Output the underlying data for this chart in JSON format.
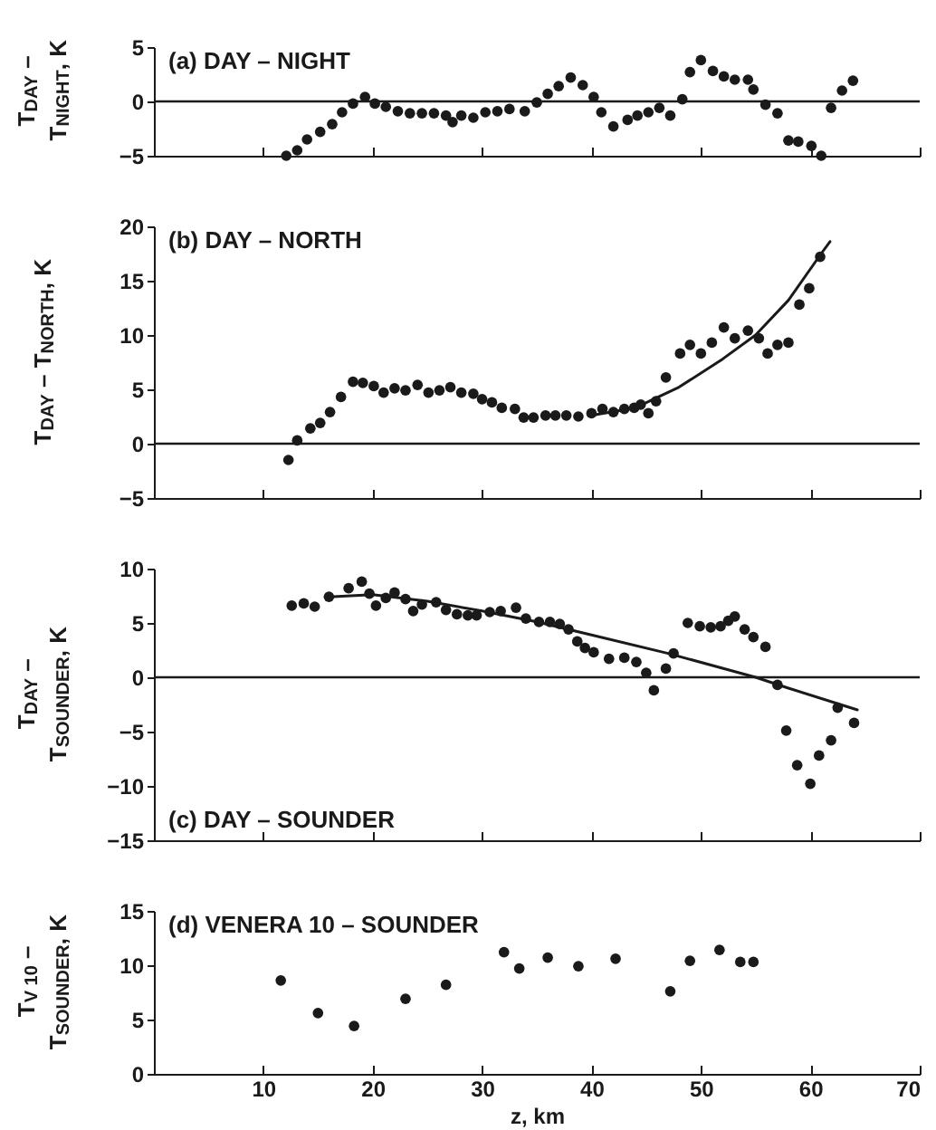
{
  "chart_data": [
    {
      "type": "scatter",
      "title": "(a)  DAY – NIGHT",
      "ylabel": "T$_{DAY}$ –\nT$_{NIGHT}$, K",
      "xlim": [
        0,
        70
      ],
      "xticks": [
        10,
        20,
        30,
        40,
        50,
        60,
        70
      ],
      "ylim": [
        -5,
        5
      ],
      "yticks": [
        -5,
        0,
        5
      ],
      "tick_labels": "y",
      "grid": false,
      "ref_lines": [
        {
          "axis": "y",
          "value": 0
        }
      ],
      "series": [
        {
          "color": "#1a1a1a",
          "marker": "circle",
          "x": [
            12.1,
            13.1,
            14.0,
            15.2,
            16.3,
            17.2,
            18.2,
            19.3,
            20.2,
            21.2,
            22.3,
            23.4,
            24.5,
            25.6,
            26.7,
            27.3,
            28.1,
            29.2,
            30.3,
            31.4,
            32.5,
            33.9,
            35.0,
            36.0,
            37.0,
            38.1,
            39.2,
            40.2,
            40.9,
            42.0,
            43.3,
            44.2,
            45.2,
            46.2,
            47.2,
            48.3,
            49.0,
            50.0,
            51.1,
            52.1,
            53.1,
            54.3,
            54.8,
            55.9,
            57.0,
            58.0,
            58.9,
            60.1,
            61.0,
            61.9,
            62.9,
            63.9
          ],
          "values": [
            -5.0,
            -4.5,
            -3.5,
            -2.8,
            -2.1,
            -1.0,
            -0.2,
            0.4,
            -0.2,
            -0.5,
            -0.9,
            -1.1,
            -1.1,
            -1.1,
            -1.3,
            -1.9,
            -1.3,
            -1.5,
            -1.0,
            -0.9,
            -0.7,
            -0.9,
            -0.1,
            0.7,
            1.4,
            2.2,
            1.5,
            0.4,
            -1.0,
            -2.3,
            -1.7,
            -1.3,
            -1.0,
            -0.6,
            -1.3,
            0.2,
            2.7,
            3.8,
            2.8,
            2.3,
            2.0,
            2.0,
            1.1,
            -0.3,
            -1.1,
            -3.6,
            -3.7,
            -4.1,
            -5.0,
            -0.6,
            1.0,
            1.9
          ]
        }
      ]
    },
    {
      "type": "scatter",
      "title": "(b)  DAY – NORTH",
      "ylabel": "T$_{DAY}$ – T$_{NORTH}$, K",
      "xlim": [
        0,
        70
      ],
      "xticks": [
        10,
        20,
        30,
        40,
        50,
        60,
        70
      ],
      "ylim": [
        -5,
        20
      ],
      "yticks": [
        -5,
        0,
        5,
        10,
        15,
        20
      ],
      "tick_labels": "y",
      "grid": false,
      "ref_lines": [
        {
          "axis": "y",
          "value": 0
        }
      ],
      "series": [
        {
          "color": "#1a1a1a",
          "marker": "circle",
          "x": [
            12.3,
            13.1,
            14.3,
            15.2,
            16.1,
            17.1,
            18.2,
            19.1,
            20.1,
            21.0,
            22.0,
            23.0,
            24.1,
            25.1,
            26.1,
            27.1,
            28.1,
            29.2,
            30.0,
            30.9,
            31.8,
            33.0,
            33.8,
            34.7,
            35.8,
            36.7,
            37.7,
            38.8,
            40.0,
            41.0,
            42.0,
            43.0,
            43.9,
            44.5,
            45.2,
            45.9,
            46.8,
            48.1,
            49.0,
            50.0,
            51.0,
            52.1,
            53.1,
            54.3,
            55.3,
            56.1,
            57.0,
            58.0,
            59.0,
            59.9,
            60.9
          ],
          "values": [
            -1.5,
            0.3,
            1.4,
            1.9,
            2.9,
            4.3,
            5.7,
            5.6,
            5.3,
            4.7,
            5.1,
            4.9,
            5.4,
            4.7,
            4.9,
            5.2,
            4.7,
            4.6,
            4.1,
            3.8,
            3.3,
            3.2,
            2.4,
            2.4,
            2.6,
            2.6,
            2.6,
            2.5,
            2.8,
            3.2,
            2.9,
            3.2,
            3.3,
            3.6,
            2.8,
            3.9,
            6.1,
            8.3,
            9.1,
            8.3,
            9.3,
            10.7,
            9.7,
            10.4,
            9.7,
            8.3,
            9.1,
            9.3,
            12.8,
            14.3,
            17.2
          ]
        },
        {
          "type": "line",
          "color": "#1a1a1a",
          "x": [
            40,
            44,
            48,
            52,
            55,
            58,
            61,
            61.8
          ],
          "values": [
            2.6,
            3.3,
            5.2,
            7.8,
            10.0,
            13.2,
            17.5,
            18.6
          ]
        }
      ]
    },
    {
      "type": "scatter",
      "title": "(c)  DAY – SOUNDER",
      "ylabel": "T$_{DAY}$ –\nT$_{SOUNDER}$, K",
      "xlim": [
        0,
        70
      ],
      "xticks": [
        10,
        20,
        30,
        40,
        50,
        60,
        70
      ],
      "ylim": [
        -15,
        10
      ],
      "yticks": [
        -15,
        -10,
        -5,
        0,
        5,
        10
      ],
      "tick_labels": "y",
      "grid": false,
      "ref_lines": [
        {
          "axis": "y",
          "value": 0
        }
      ],
      "series": [
        {
          "color": "#1a1a1a",
          "marker": "circle",
          "x": [
            12.6,
            13.7,
            14.7,
            16.0,
            17.8,
            19.0,
            19.7,
            20.3,
            21.2,
            22.0,
            23.0,
            23.7,
            24.5,
            25.8,
            26.7,
            27.7,
            28.7,
            29.5,
            30.7,
            31.7,
            33.1,
            34.0,
            35.2,
            36.2,
            37.1,
            37.9,
            38.7,
            39.4,
            40.2,
            41.6,
            43.0,
            44.1,
            45.0,
            45.7,
            46.8,
            47.5,
            48.8,
            49.9,
            50.9,
            51.8,
            52.5,
            53.1,
            54.0,
            54.8,
            55.9,
            57.0,
            57.8,
            58.8,
            60.0,
            60.8,
            61.9,
            62.5,
            64.0
          ],
          "values": [
            6.6,
            6.8,
            6.5,
            7.4,
            8.2,
            8.8,
            7.7,
            6.6,
            7.3,
            7.8,
            7.2,
            6.1,
            6.7,
            6.9,
            6.2,
            5.8,
            5.7,
            5.7,
            6.0,
            6.1,
            6.4,
            5.4,
            5.1,
            5.1,
            4.9,
            4.4,
            3.3,
            2.7,
            2.3,
            1.7,
            1.8,
            1.4,
            0.4,
            -1.2,
            0.8,
            2.2,
            5.0,
            4.7,
            4.6,
            4.7,
            5.2,
            5.6,
            4.4,
            3.7,
            2.8,
            -0.7,
            -4.9,
            -8.1,
            -9.8,
            -7.2,
            -5.8,
            -2.8,
            -4.2
          ]
        },
        {
          "type": "line",
          "color": "#1a1a1a",
          "x": [
            16,
            20,
            25,
            30,
            35,
            40,
            47,
            55,
            58,
            64.3
          ],
          "values": [
            7.4,
            7.6,
            7.0,
            6.1,
            5.1,
            3.9,
            2.2,
            0,
            -1.0,
            -3.0
          ]
        }
      ]
    },
    {
      "type": "scatter",
      "title": "(d)  VENERA 10 – SOUNDER",
      "ylabel": "T$_{V 10}$ –\nT$_{SOUNDER}$, K",
      "xlabel": "z, km",
      "xlim": [
        0,
        70
      ],
      "xticks": [
        10,
        20,
        30,
        40,
        50,
        60,
        70
      ],
      "ylim": [
        0,
        15
      ],
      "yticks": [
        0,
        5,
        10,
        15
      ],
      "grid": false,
      "series": [
        {
          "color": "#1a1a1a",
          "marker": "circle",
          "x": [
            11.6,
            15.0,
            18.3,
            23.0,
            26.7,
            32.0,
            33.4,
            36.0,
            38.8,
            42.2,
            47.2,
            49.0,
            51.7,
            53.6,
            54.8
          ],
          "values": [
            8.6,
            5.6,
            4.4,
            6.9,
            8.2,
            11.2,
            9.7,
            10.7,
            9.9,
            10.6,
            7.6,
            10.4,
            11.4,
            10.3,
            10.3
          ]
        }
      ]
    }
  ]
}
